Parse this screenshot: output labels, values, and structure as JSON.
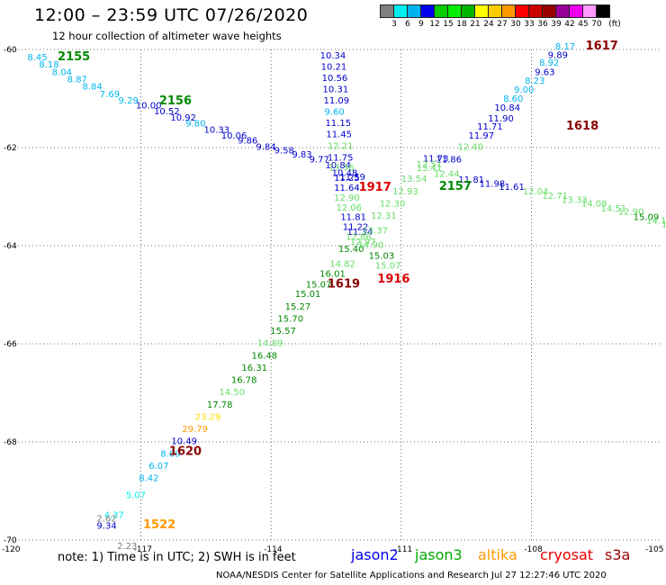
{
  "header": {
    "title": "12:00 – 23:59 UTC 07/26/2020",
    "subtitle": "12 hour collection of altimeter wave heights"
  },
  "colorbar": {
    "unit_label": "(ft)",
    "colors": [
      "#7f7f7f",
      "#00eeee",
      "#00b4ee",
      "#0000ee",
      "#00cc00",
      "#00ee00",
      "#00b400",
      "#ffff00",
      "#ffcc00",
      "#ff9900",
      "#ff0000",
      "#cc0000",
      "#990000",
      "#990099",
      "#ee00ee",
      "#ff99ff",
      "#000000"
    ],
    "labels": [
      "3",
      "6",
      "9",
      "12",
      "15",
      "18",
      "21",
      "24",
      "27",
      "30",
      "33",
      "36",
      "39",
      "42",
      "45",
      "70"
    ]
  },
  "chart_data": {
    "type": "scatter",
    "title": "12:00 – 23:59 UTC 07/26/2020",
    "subtitle": "12 hour collection of altimeter wave heights",
    "x_ticks": [
      "-120",
      "-117",
      "-114",
      "-111",
      "-108",
      "-105"
    ],
    "y_ticks": [
      "-60",
      "-62",
      "-64",
      "-66",
      "-68",
      "-70"
    ],
    "xlim": [
      -120,
      -105
    ],
    "ylim": [
      -70,
      -60
    ],
    "grid": "dotted",
    "passes": [
      {
        "label": "2155",
        "satellite": "jason3",
        "color": "#008800",
        "x": -118.92,
        "y": -60.22
      },
      {
        "label": "2156",
        "satellite": "jason3",
        "color": "#008800",
        "x": -116.58,
        "y": -61.12
      },
      {
        "label": "2157",
        "satellite": "jason3",
        "color": "#008800",
        "x": -110.13,
        "y": -62.86
      },
      {
        "label": "1916",
        "satellite": "cryosat",
        "color": "#dd0000",
        "x": -111.55,
        "y": -64.75
      },
      {
        "label": "1917",
        "satellite": "cryosat",
        "color": "#dd0000",
        "x": -111.98,
        "y": -62.88
      },
      {
        "label": "1617",
        "satellite": "s3a",
        "color": "#880000",
        "x": -106.75,
        "y": -60.0
      },
      {
        "label": "1618",
        "satellite": "s3a",
        "color": "#880000",
        "x": -107.2,
        "y": -61.63
      },
      {
        "label": "1619",
        "satellite": "s3a",
        "color": "#880000",
        "x": -112.7,
        "y": -64.85
      },
      {
        "label": "1620",
        "satellite": "s3a",
        "color": "#880000",
        "x": -116.35,
        "y": -68.27
      },
      {
        "label": "1522",
        "satellite": "altika",
        "color": "#ff9900",
        "x": -116.95,
        "y": -69.76
      }
    ],
    "points": [
      {
        "v": "8.45",
        "x": -119.62,
        "y": -60.22,
        "c": "#00b4ee"
      },
      {
        "v": "8.18",
        "x": -119.35,
        "y": -60.37,
        "c": "#00b4ee"
      },
      {
        "v": "8.04",
        "x": -119.05,
        "y": -60.52,
        "c": "#00b4ee"
      },
      {
        "v": "8.87",
        "x": -118.7,
        "y": -60.67,
        "c": "#00b4ee"
      },
      {
        "v": "8.84",
        "x": -118.35,
        "y": -60.82,
        "c": "#00b4ee"
      },
      {
        "v": "7.69",
        "x": -117.95,
        "y": -60.97,
        "c": "#00b4ee"
      },
      {
        "v": "9.29",
        "x": -117.52,
        "y": -61.1,
        "c": "#00b4ee"
      },
      {
        "v": "10.00",
        "x": -117.12,
        "y": -61.2,
        "c": "#0000cc"
      },
      {
        "v": "10.52",
        "x": -116.7,
        "y": -61.32,
        "c": "#0000cc"
      },
      {
        "v": "10.92",
        "x": -116.32,
        "y": -61.45,
        "c": "#0000cc"
      },
      {
        "v": "9.80",
        "x": -115.97,
        "y": -61.57,
        "c": "#00b4ee"
      },
      {
        "v": "10.33",
        "x": -115.55,
        "y": -61.7,
        "c": "#0000cc"
      },
      {
        "v": "10.06",
        "x": -115.15,
        "y": -61.82,
        "c": "#0000cc"
      },
      {
        "v": "9.86",
        "x": -114.77,
        "y": -61.92,
        "c": "#0000cc"
      },
      {
        "v": "9.84",
        "x": -114.35,
        "y": -62.05,
        "c": "#0000cc"
      },
      {
        "v": "9.58",
        "x": -113.93,
        "y": -62.12,
        "c": "#0000cc"
      },
      {
        "v": "9.83",
        "x": -113.52,
        "y": -62.2,
        "c": "#0000cc"
      },
      {
        "v": "9.77",
        "x": -113.12,
        "y": -62.3,
        "c": "#0000cc"
      },
      {
        "v": "10.34",
        "x": -112.87,
        "y": -60.18,
        "c": "#0000cc"
      },
      {
        "v": "10.21",
        "x": -112.85,
        "y": -60.41,
        "c": "#0000cc"
      },
      {
        "v": "10.56",
        "x": -112.83,
        "y": -60.64,
        "c": "#0000cc"
      },
      {
        "v": "10.31",
        "x": -112.81,
        "y": -60.87,
        "c": "#0000cc"
      },
      {
        "v": "11.09",
        "x": -112.79,
        "y": -61.1,
        "c": "#0000cc"
      },
      {
        "v": "9.60",
        "x": -112.77,
        "y": -61.33,
        "c": "#00b4ee"
      },
      {
        "v": "11.15",
        "x": -112.75,
        "y": -61.56,
        "c": "#0000cc"
      },
      {
        "v": "11.45",
        "x": -112.73,
        "y": -61.79,
        "c": "#0000cc"
      },
      {
        "v": "12.21",
        "x": -112.7,
        "y": -62.03,
        "c": "#66dd66"
      },
      {
        "v": "11.75",
        "x": -112.7,
        "y": -62.27,
        "c": "#0000cc"
      },
      {
        "v": "10.84",
        "x": -112.75,
        "y": -62.42,
        "c": "#0000cc"
      },
      {
        "v": "13.36",
        "x": -112.68,
        "y": -62.47,
        "c": "#66dd66"
      },
      {
        "v": "10.48",
        "x": -112.6,
        "y": -62.58,
        "c": "#0000cc"
      },
      {
        "v": "11.59",
        "x": -112.42,
        "y": -62.66,
        "c": "#0000cc"
      },
      {
        "v": "11.25",
        "x": -112.55,
        "y": -62.68,
        "c": "#0000cc"
      },
      {
        "v": "11.64",
        "x": -112.55,
        "y": -62.88,
        "c": "#0000cc"
      },
      {
        "v": "12.90",
        "x": -112.55,
        "y": -63.08,
        "c": "#66dd66"
      },
      {
        "v": "12.06",
        "x": -112.5,
        "y": -63.28,
        "c": "#66dd66"
      },
      {
        "v": "11.81",
        "x": -112.4,
        "y": -63.48,
        "c": "#0000cc"
      },
      {
        "v": "11.22",
        "x": -112.35,
        "y": -63.68,
        "c": "#0000cc"
      },
      {
        "v": "11.34",
        "x": -112.25,
        "y": -63.78,
        "c": "#0000cc"
      },
      {
        "v": "12.86",
        "x": -112.28,
        "y": -63.88,
        "c": "#66dd66"
      },
      {
        "v": "12.97",
        "x": -112.18,
        "y": -63.98,
        "c": "#66dd66"
      },
      {
        "v": "15.40",
        "x": -112.45,
        "y": -64.13,
        "c": "#008800"
      },
      {
        "v": "14.82",
        "x": -112.65,
        "y": -64.43,
        "c": "#66dd66"
      },
      {
        "v": "16.01",
        "x": -112.88,
        "y": -64.63,
        "c": "#008800"
      },
      {
        "v": "15.07",
        "x": -113.2,
        "y": -64.85,
        "c": "#008800"
      },
      {
        "v": "15.01",
        "x": -113.45,
        "y": -65.05,
        "c": "#008800"
      },
      {
        "v": "15.27",
        "x": -113.68,
        "y": -65.3,
        "c": "#008800"
      },
      {
        "v": "15.70",
        "x": -113.85,
        "y": -65.55,
        "c": "#008800"
      },
      {
        "v": "15.57",
        "x": -114.02,
        "y": -65.8,
        "c": "#008800"
      },
      {
        "v": "14.89",
        "x": -114.32,
        "y": -66.05,
        "c": "#66dd66"
      },
      {
        "v": "16.48",
        "x": -114.45,
        "y": -66.3,
        "c": "#008800"
      },
      {
        "v": "16.31",
        "x": -114.68,
        "y": -66.55,
        "c": "#008800"
      },
      {
        "v": "16.78",
        "x": -114.92,
        "y": -66.8,
        "c": "#008800"
      },
      {
        "v": "14.50",
        "x": -115.2,
        "y": -67.05,
        "c": "#66dd66"
      },
      {
        "v": "17.78",
        "x": -115.48,
        "y": -67.3,
        "c": "#008800"
      },
      {
        "v": "23.29",
        "x": -115.75,
        "y": -67.55,
        "c": "#ffdd00"
      },
      {
        "v": "29.79",
        "x": -116.05,
        "y": -67.8,
        "c": "#ff9900"
      },
      {
        "v": "10.49",
        "x": -116.3,
        "y": -68.05,
        "c": "#0000cc"
      },
      {
        "v": "8.09",
        "x": -116.55,
        "y": -68.3,
        "c": "#00b4ee"
      },
      {
        "v": "6.07",
        "x": -116.82,
        "y": -68.55,
        "c": "#00b4ee"
      },
      {
        "v": "8.42",
        "x": -117.05,
        "y": -68.8,
        "c": "#00b4ee"
      },
      {
        "v": "5.07",
        "x": -117.35,
        "y": -69.15,
        "c": "#00eeee"
      },
      {
        "v": "4.37",
        "x": -117.85,
        "y": -69.55,
        "c": "#00eeee"
      },
      {
        "v": "2.62",
        "x": -118.02,
        "y": -69.62,
        "c": "#7f7f7f"
      },
      {
        "v": "9.34",
        "x": -118.02,
        "y": -69.77,
        "c": "#0000cc"
      },
      {
        "v": "2.23",
        "x": -117.55,
        "y": -70.18,
        "c": "#7f7f7f"
      },
      {
        "v": "8.17",
        "x": -107.45,
        "y": -60.0,
        "c": "#00b4ee"
      },
      {
        "v": "9.89",
        "x": -107.62,
        "y": -60.17,
        "c": "#0000cc"
      },
      {
        "v": "8.92",
        "x": -107.82,
        "y": -60.33,
        "c": "#00b4ee"
      },
      {
        "v": "9.63",
        "x": -107.92,
        "y": -60.52,
        "c": "#0000cc"
      },
      {
        "v": "8.23",
        "x": -108.15,
        "y": -60.7,
        "c": "#00b4ee"
      },
      {
        "v": "9.00",
        "x": -108.4,
        "y": -60.88,
        "c": "#00b4ee"
      },
      {
        "v": "8.60",
        "x": -108.65,
        "y": -61.06,
        "c": "#00b4ee"
      },
      {
        "v": "10.84",
        "x": -108.85,
        "y": -61.25,
        "c": "#0000cc"
      },
      {
        "v": "11.90",
        "x": -109.0,
        "y": -61.47,
        "c": "#0000cc"
      },
      {
        "v": "11.71",
        "x": -109.25,
        "y": -61.63,
        "c": "#0000cc"
      },
      {
        "v": "11.97",
        "x": -109.45,
        "y": -61.82,
        "c": "#0000cc"
      },
      {
        "v": "12.40",
        "x": -109.7,
        "y": -62.05,
        "c": "#66dd66"
      },
      {
        "v": "11.86",
        "x": -110.2,
        "y": -62.3,
        "c": "#0000cc"
      },
      {
        "v": "11.73",
        "x": -110.5,
        "y": -62.28,
        "c": "#0000cc"
      },
      {
        "v": "12.51",
        "x": -110.65,
        "y": -62.4,
        "c": "#66dd66"
      },
      {
        "v": "13.54",
        "x": -111.0,
        "y": -62.7,
        "c": "#66dd66"
      },
      {
        "v": "12.93",
        "x": -111.2,
        "y": -62.95,
        "c": "#66dd66"
      },
      {
        "v": "12.30",
        "x": -111.5,
        "y": -63.2,
        "c": "#66dd66"
      },
      {
        "v": "12.31",
        "x": -111.7,
        "y": -63.45,
        "c": "#66dd66"
      },
      {
        "v": "13.37",
        "x": -111.9,
        "y": -63.75,
        "c": "#66dd66"
      },
      {
        "v": "14.90",
        "x": -112.0,
        "y": -64.05,
        "c": "#66dd66"
      },
      {
        "v": "15.03",
        "x": -111.75,
        "y": -64.27,
        "c": "#008800"
      },
      {
        "v": "15.07",
        "x": -111.6,
        "y": -64.47,
        "c": "#66dd66"
      },
      {
        "v": "13.41",
        "x": -110.65,
        "y": -62.48,
        "c": "#66dd66"
      },
      {
        "v": "12.44",
        "x": -110.25,
        "y": -62.6,
        "c": "#66dd66"
      },
      {
        "v": "11.81",
        "x": -109.68,
        "y": -62.72,
        "c": "#0000cc"
      },
      {
        "v": "11.98",
        "x": -109.2,
        "y": -62.8,
        "c": "#0000cc"
      },
      {
        "v": "11.61",
        "x": -108.75,
        "y": -62.86,
        "c": "#0000cc"
      },
      {
        "v": "12.04",
        "x": -108.2,
        "y": -62.95,
        "c": "#66dd66"
      },
      {
        "v": "12.71",
        "x": -107.75,
        "y": -63.05,
        "c": "#66dd66"
      },
      {
        "v": "13.33",
        "x": -107.3,
        "y": -63.13,
        "c": "#66dd66"
      },
      {
        "v": "14.08",
        "x": -106.85,
        "y": -63.2,
        "c": "#66dd66"
      },
      {
        "v": "14.51",
        "x": -106.4,
        "y": -63.3,
        "c": "#66dd66"
      },
      {
        "v": "12.90",
        "x": -106.0,
        "y": -63.37,
        "c": "#66dd66"
      },
      {
        "v": "15.09",
        "x": -105.65,
        "y": -63.48,
        "c": "#008800"
      },
      {
        "v": "14.17",
        "x": -105.35,
        "y": -63.55,
        "c": "#66dd66"
      },
      {
        "v": "14.37",
        "x": -105.0,
        "y": -63.62,
        "c": "#66dd66"
      }
    ]
  },
  "footer": {
    "note": "note:  1) Time is in UTC;  2) SWH is in feet",
    "satellites": [
      {
        "name": "jason2",
        "color": "#0000ee"
      },
      {
        "name": "jason3",
        "color": "#00aa00"
      },
      {
        "name": "altika",
        "color": "#ff9900"
      },
      {
        "name": "cryosat",
        "color": "#ee0000"
      },
      {
        "name": "s3a",
        "color": "#990000"
      }
    ],
    "credit": "NOAA/NESDIS Center for Satellite Applications and Research    Jul 27 12:27:46 UTC 2020"
  }
}
